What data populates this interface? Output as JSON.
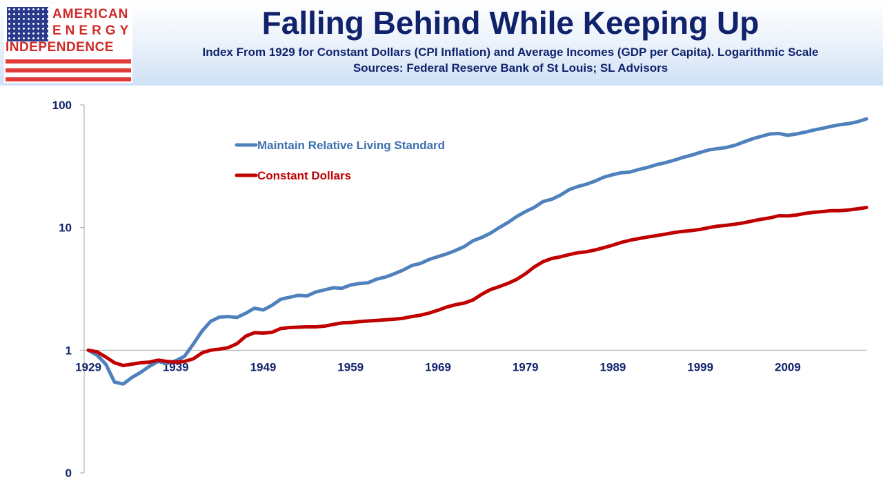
{
  "logo": {
    "line1": "AMERICAN",
    "line2": "ENERGY",
    "line3": "INDEPENDENCE",
    "flag_icon": "us-flag-icon"
  },
  "title": "Falling Behind While Keeping Up",
  "subtitle_1": "Index From 1929 for Constant Dollars (CPI Inflation) and Average Incomes (GDP per Capita). Logarithmic Scale",
  "subtitle_2": "Sources: Federal Reserve Bank of St Louis; SL Advisors",
  "colors": {
    "title": "#10226b",
    "logo_red": "#d02a2a",
    "maintain": "#4f81bd",
    "constant": "#c00000"
  },
  "chart_data": {
    "type": "line",
    "title": "Falling Behind While Keeping Up",
    "xlabel": "",
    "ylabel": "",
    "y_scale": "log",
    "y_ticks": [
      0.1,
      1,
      10,
      100
    ],
    "y_tick_labels": [
      "0",
      "1",
      "10",
      "100"
    ],
    "x_ticks": [
      1929,
      1939,
      1949,
      1959,
      1969,
      1979,
      1989,
      1999,
      2009
    ],
    "x_tick_labels": [
      "1929",
      "1939",
      "1949",
      "1959",
      "1969",
      "1979",
      "1989",
      "1999",
      "2009"
    ],
    "xlim": [
      1929,
      2018
    ],
    "ylim": [
      0.1,
      100
    ],
    "grid": false,
    "legend_position": "top-left",
    "series": [
      {
        "name": "Maintain Relative Living Standard",
        "color": "#4f81bd",
        "points": [
          [
            1929,
            1.0
          ],
          [
            1930,
            0.91
          ],
          [
            1931,
            0.77
          ],
          [
            1932,
            0.55
          ],
          [
            1933,
            0.53
          ],
          [
            1934,
            0.6
          ],
          [
            1935,
            0.66
          ],
          [
            1936,
            0.74
          ],
          [
            1937,
            0.81
          ],
          [
            1938,
            0.78
          ],
          [
            1939,
            0.82
          ],
          [
            1940,
            0.89
          ],
          [
            1941,
            1.12
          ],
          [
            1942,
            1.43
          ],
          [
            1943,
            1.72
          ],
          [
            1944,
            1.86
          ],
          [
            1945,
            1.88
          ],
          [
            1946,
            1.85
          ],
          [
            1947,
            2.0
          ],
          [
            1948,
            2.2
          ],
          [
            1949,
            2.13
          ],
          [
            1950,
            2.32
          ],
          [
            1951,
            2.6
          ],
          [
            1952,
            2.7
          ],
          [
            1953,
            2.8
          ],
          [
            1954,
            2.77
          ],
          [
            1955,
            2.98
          ],
          [
            1956,
            3.1
          ],
          [
            1957,
            3.23
          ],
          [
            1958,
            3.2
          ],
          [
            1959,
            3.4
          ],
          [
            1960,
            3.5
          ],
          [
            1961,
            3.55
          ],
          [
            1962,
            3.8
          ],
          [
            1963,
            3.95
          ],
          [
            1964,
            4.2
          ],
          [
            1965,
            4.5
          ],
          [
            1966,
            4.9
          ],
          [
            1967,
            5.1
          ],
          [
            1968,
            5.5
          ],
          [
            1969,
            5.8
          ],
          [
            1970,
            6.1
          ],
          [
            1971,
            6.5
          ],
          [
            1972,
            7.0
          ],
          [
            1973,
            7.8
          ],
          [
            1974,
            8.3
          ],
          [
            1975,
            9.0
          ],
          [
            1976,
            10.0
          ],
          [
            1977,
            11.0
          ],
          [
            1978,
            12.3
          ],
          [
            1979,
            13.5
          ],
          [
            1980,
            14.6
          ],
          [
            1981,
            16.3
          ],
          [
            1982,
            17.0
          ],
          [
            1983,
            18.4
          ],
          [
            1984,
            20.4
          ],
          [
            1985,
            21.6
          ],
          [
            1986,
            22.6
          ],
          [
            1987,
            24.0
          ],
          [
            1988,
            25.8
          ],
          [
            1989,
            27.0
          ],
          [
            1990,
            28.0
          ],
          [
            1991,
            28.4
          ],
          [
            1992,
            29.8
          ],
          [
            1993,
            31.0
          ],
          [
            1994,
            32.6
          ],
          [
            1995,
            33.8
          ],
          [
            1996,
            35.4
          ],
          [
            1997,
            37.3
          ],
          [
            1998,
            39.0
          ],
          [
            1999,
            41.0
          ],
          [
            2000,
            43.0
          ],
          [
            2001,
            44.0
          ],
          [
            2002,
            45.0
          ],
          [
            2003,
            47.0
          ],
          [
            2004,
            50.0
          ],
          [
            2005,
            53.0
          ],
          [
            2006,
            55.5
          ],
          [
            2007,
            58.0
          ],
          [
            2008,
            58.5
          ],
          [
            2009,
            56.5
          ],
          [
            2010,
            58.0
          ],
          [
            2011,
            60.0
          ],
          [
            2012,
            62.5
          ],
          [
            2013,
            64.5
          ],
          [
            2014,
            67.0
          ],
          [
            2015,
            69.0
          ],
          [
            2016,
            70.5
          ],
          [
            2017,
            73.0
          ],
          [
            2018,
            77.0
          ]
        ]
      },
      {
        "name": "Constant Dollars",
        "color": "#c00000",
        "points": [
          [
            1929,
            1.0
          ],
          [
            1930,
            0.97
          ],
          [
            1931,
            0.88
          ],
          [
            1932,
            0.79
          ],
          [
            1933,
            0.75
          ],
          [
            1934,
            0.77
          ],
          [
            1935,
            0.79
          ],
          [
            1936,
            0.8
          ],
          [
            1937,
            0.83
          ],
          [
            1938,
            0.81
          ],
          [
            1939,
            0.8
          ],
          [
            1940,
            0.81
          ],
          [
            1941,
            0.85
          ],
          [
            1942,
            0.95
          ],
          [
            1943,
            1.0
          ],
          [
            1944,
            1.02
          ],
          [
            1945,
            1.05
          ],
          [
            1946,
            1.13
          ],
          [
            1947,
            1.3
          ],
          [
            1948,
            1.39
          ],
          [
            1949,
            1.38
          ],
          [
            1950,
            1.4
          ],
          [
            1951,
            1.5
          ],
          [
            1952,
            1.53
          ],
          [
            1953,
            1.54
          ],
          [
            1954,
            1.55
          ],
          [
            1955,
            1.55
          ],
          [
            1956,
            1.57
          ],
          [
            1957,
            1.62
          ],
          [
            1958,
            1.67
          ],
          [
            1959,
            1.68
          ],
          [
            1960,
            1.71
          ],
          [
            1961,
            1.73
          ],
          [
            1962,
            1.75
          ],
          [
            1963,
            1.77
          ],
          [
            1964,
            1.79
          ],
          [
            1965,
            1.82
          ],
          [
            1966,
            1.88
          ],
          [
            1967,
            1.93
          ],
          [
            1968,
            2.01
          ],
          [
            1969,
            2.12
          ],
          [
            1970,
            2.25
          ],
          [
            1971,
            2.35
          ],
          [
            1972,
            2.42
          ],
          [
            1973,
            2.57
          ],
          [
            1974,
            2.86
          ],
          [
            1975,
            3.12
          ],
          [
            1976,
            3.3
          ],
          [
            1977,
            3.51
          ],
          [
            1978,
            3.78
          ],
          [
            1979,
            4.2
          ],
          [
            1980,
            4.77
          ],
          [
            1981,
            5.27
          ],
          [
            1982,
            5.59
          ],
          [
            1983,
            5.77
          ],
          [
            1984,
            6.02
          ],
          [
            1985,
            6.24
          ],
          [
            1986,
            6.35
          ],
          [
            1987,
            6.58
          ],
          [
            1988,
            6.86
          ],
          [
            1989,
            7.19
          ],
          [
            1990,
            7.58
          ],
          [
            1991,
            7.9
          ],
          [
            1992,
            8.14
          ],
          [
            1993,
            8.38
          ],
          [
            1994,
            8.6
          ],
          [
            1995,
            8.84
          ],
          [
            1996,
            9.1
          ],
          [
            1997,
            9.31
          ],
          [
            1998,
            9.45
          ],
          [
            1999,
            9.66
          ],
          [
            2000,
            9.99
          ],
          [
            2001,
            10.27
          ],
          [
            2002,
            10.43
          ],
          [
            2003,
            10.67
          ],
          [
            2004,
            10.95
          ],
          [
            2005,
            11.33
          ],
          [
            2006,
            11.69
          ],
          [
            2007,
            12.02
          ],
          [
            2008,
            12.49
          ],
          [
            2009,
            12.44
          ],
          [
            2010,
            12.65
          ],
          [
            2011,
            13.05
          ],
          [
            2012,
            13.32
          ],
          [
            2013,
            13.51
          ],
          [
            2014,
            13.73
          ],
          [
            2015,
            13.75
          ],
          [
            2016,
            13.92
          ],
          [
            2017,
            14.22
          ],
          [
            2018,
            14.57
          ]
        ]
      }
    ]
  }
}
